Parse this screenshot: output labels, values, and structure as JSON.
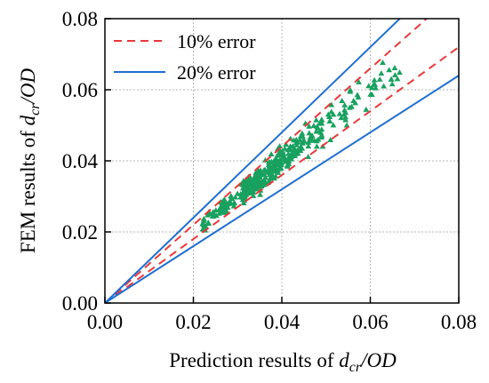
{
  "chart_data": {
    "type": "scatter",
    "title": "",
    "xlabel": {
      "prefix": "Prediction results  of ",
      "var": "d",
      "sub": "cr",
      "suffix": "/OD"
    },
    "ylabel": {
      "prefix": "FEM results of ",
      "var": "d",
      "sub": "cr",
      "suffix": "/OD"
    },
    "xlim": [
      0.0,
      0.08
    ],
    "ylim": [
      0.0,
      0.08
    ],
    "xticks": [
      "0.00",
      "0.02",
      "0.04",
      "0.06",
      "0.08"
    ],
    "yticks": [
      "0.00",
      "0.02",
      "0.04",
      "0.06",
      "0.08"
    ],
    "grid": true,
    "legend_position": "top-left",
    "lines": [
      {
        "name": "10% error",
        "style": "dashed",
        "color": "#e8393a",
        "slopes": [
          0.9,
          1.1
        ]
      },
      {
        "name": "20% error",
        "style": "solid",
        "color": "#1f6fd1",
        "slopes": [
          0.8,
          1.2
        ]
      }
    ],
    "points": {
      "marker": "triangle",
      "color": "#19a15f",
      "count": 400,
      "x_range": [
        0.022,
        0.068
      ],
      "ratio_y_over_x": "1.0 ± 0.1"
    }
  }
}
